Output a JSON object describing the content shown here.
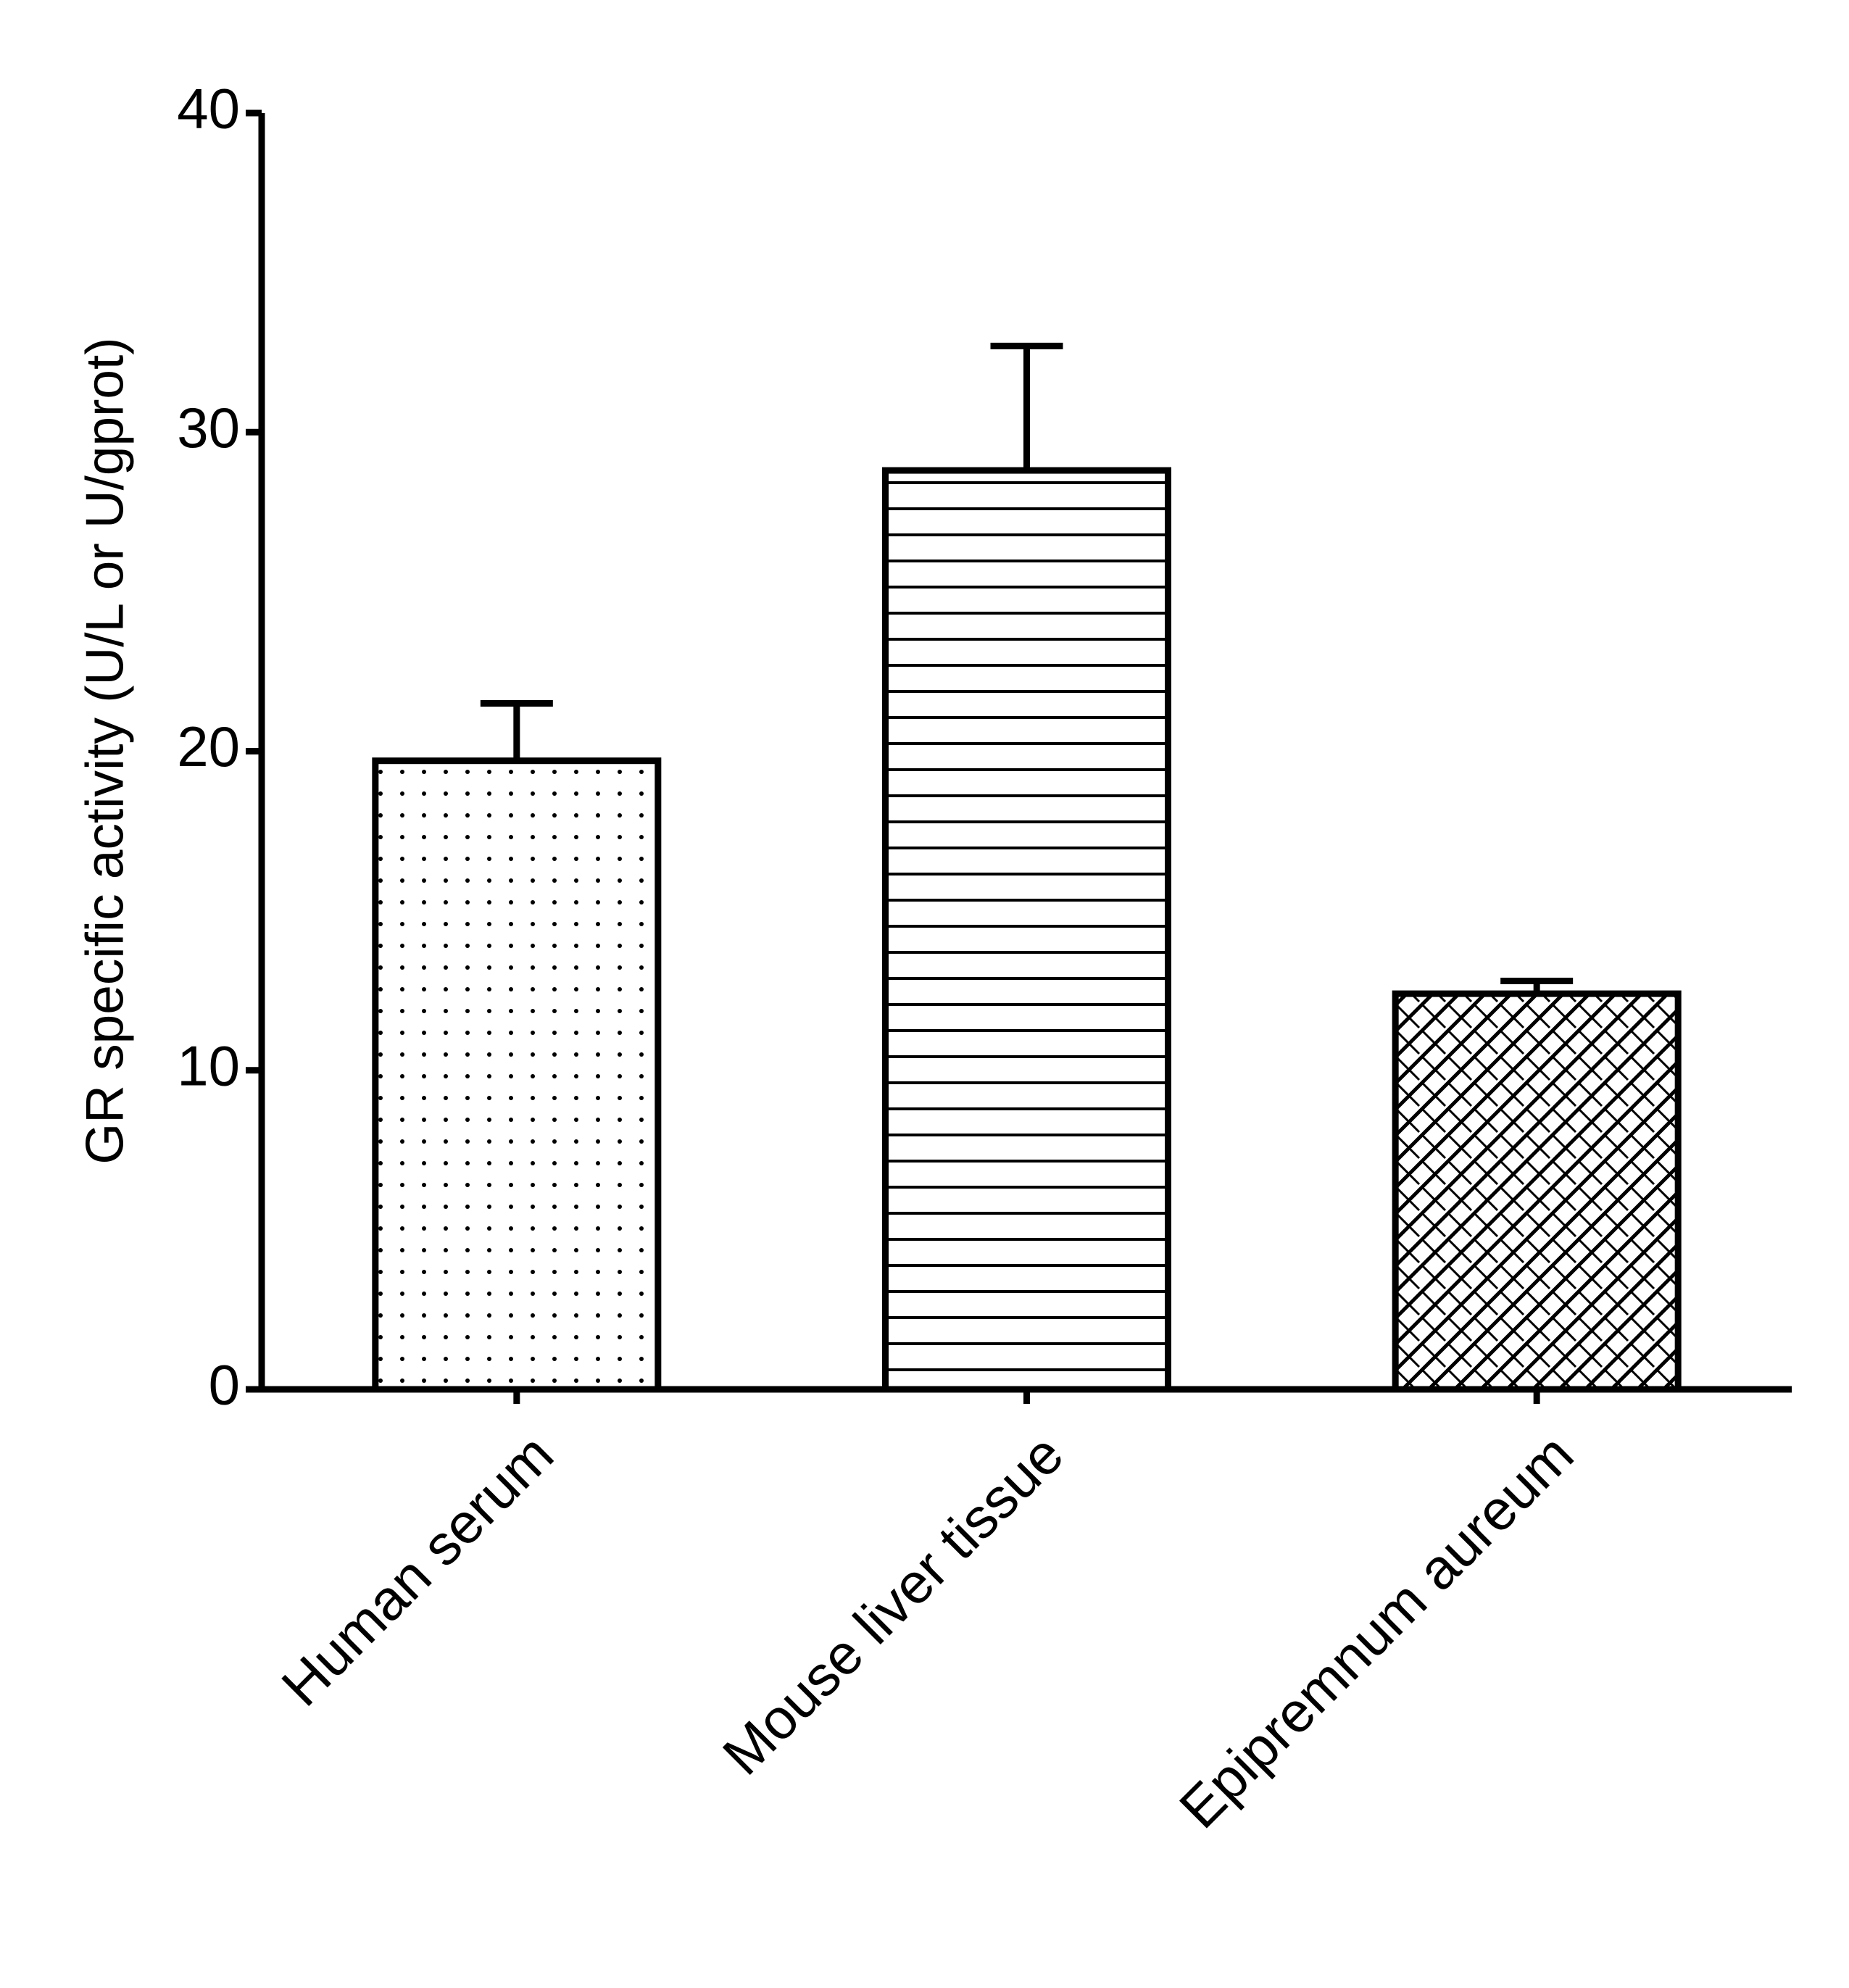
{
  "chart_data": {
    "type": "bar",
    "y_label": "GR specific activity (U/L or U/gprot)",
    "categories": [
      "Human serum",
      "Mouse liver tissue",
      "Epipremnum aureum"
    ],
    "values": [
      19.7,
      28.8,
      12.4
    ],
    "errors": [
      1.8,
      3.9,
      0.4
    ],
    "patterns": [
      "dots",
      "hlines",
      "crosshatch"
    ],
    "color": "#000000",
    "ylim": [
      0,
      40
    ],
    "yticks": [
      0,
      10,
      20,
      30,
      40
    ],
    "grid": false
  }
}
